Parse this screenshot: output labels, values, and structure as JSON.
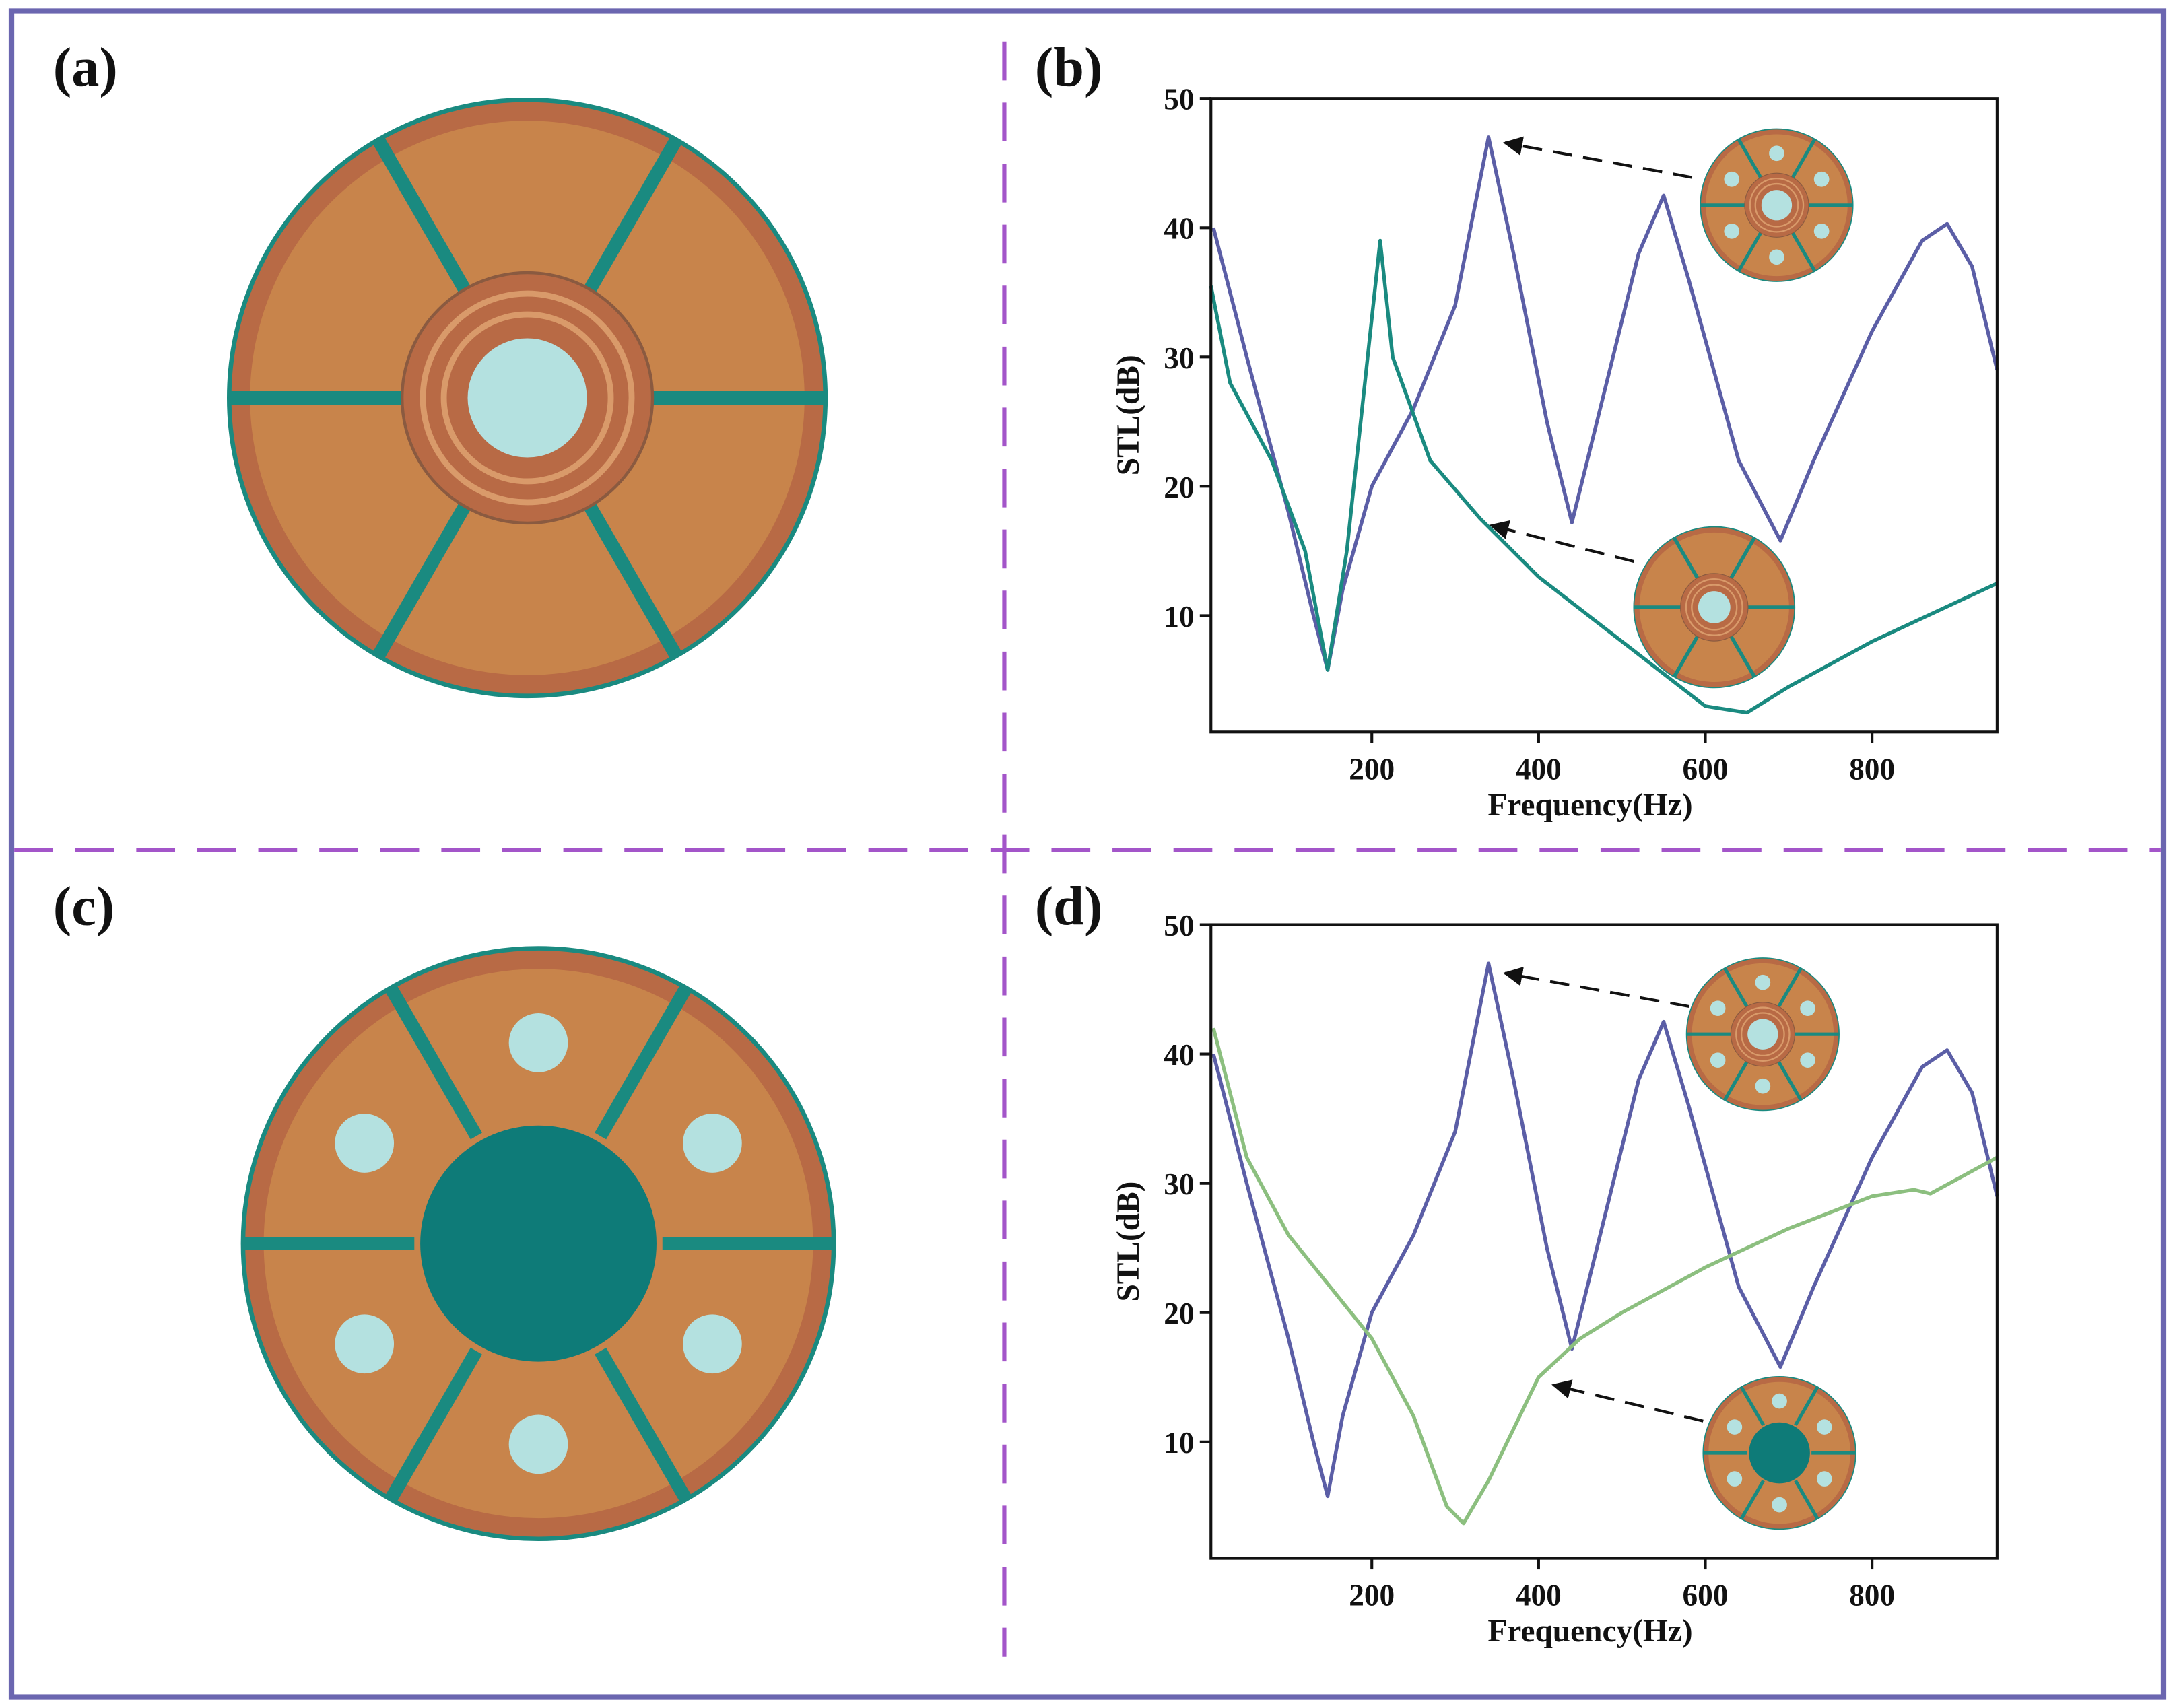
{
  "panels": [
    "(a)",
    "(b)",
    "(c)",
    "(d)"
  ],
  "chart_data": [
    {
      "type": "line",
      "xlabel": "Frequency(Hz)",
      "ylabel": "STL(dB)",
      "xlim": [
        7,
        950
      ],
      "ylim": [
        1,
        50
      ],
      "xticks": [
        200,
        400,
        600,
        800
      ],
      "yticks": [
        10,
        20,
        30,
        40,
        50
      ],
      "series": [
        {
          "color": "#5b5ea6",
          "x": [
            10,
            50,
            100,
            130,
            147,
            165,
            200,
            250,
            300,
            340,
            370,
            410,
            440,
            470,
            520,
            550,
            580,
            640,
            690,
            730,
            800,
            860,
            890,
            920,
            950
          ],
          "values": [
            40,
            30,
            18,
            10,
            5.8,
            12,
            20,
            26,
            34,
            47,
            38,
            25,
            17.2,
            25,
            38,
            42.5,
            36,
            22,
            15.8,
            22,
            32,
            39,
            40.3,
            37,
            29
          ]
        },
        {
          "color": "#1a8a80",
          "x": [
            7,
            30,
            80,
            120,
            147,
            170,
            195,
            210,
            225,
            270,
            330,
            400,
            500,
            600,
            650,
            700,
            800,
            950
          ],
          "values": [
            35.5,
            28,
            22,
            15,
            5.8,
            15,
            30,
            39,
            30,
            22,
            17.5,
            13,
            8,
            3,
            2.5,
            4.5,
            8,
            12.5
          ]
        }
      ]
    },
    {
      "type": "line",
      "xlabel": "Frequency(Hz)",
      "ylabel": "STL(dB)",
      "xlim": [
        7,
        950
      ],
      "ylim": [
        1,
        50
      ],
      "xticks": [
        200,
        400,
        600,
        800
      ],
      "yticks": [
        10,
        20,
        30,
        40,
        50
      ],
      "series": [
        {
          "color": "#5b5ea6",
          "x": [
            10,
            50,
            100,
            130,
            147,
            165,
            200,
            250,
            300,
            340,
            370,
            410,
            440,
            470,
            520,
            550,
            580,
            640,
            690,
            730,
            800,
            860,
            890,
            920,
            950
          ],
          "values": [
            40,
            30,
            18,
            10,
            5.8,
            12,
            20,
            26,
            34,
            47,
            38,
            25,
            17.2,
            25,
            38,
            42.5,
            36,
            22,
            15.8,
            22,
            32,
            39,
            40.3,
            37,
            29
          ]
        },
        {
          "color": "#8cbf7f",
          "x": [
            10,
            50,
            100,
            150,
            200,
            250,
            290,
            310,
            340,
            400,
            450,
            500,
            600,
            700,
            800,
            850,
            870,
            950
          ],
          "values": [
            42,
            32,
            26,
            22,
            18,
            12,
            5,
            3.7,
            7,
            15,
            18,
            20,
            23.5,
            26.5,
            29,
            29.5,
            29.2,
            32
          ]
        }
      ]
    }
  ]
}
